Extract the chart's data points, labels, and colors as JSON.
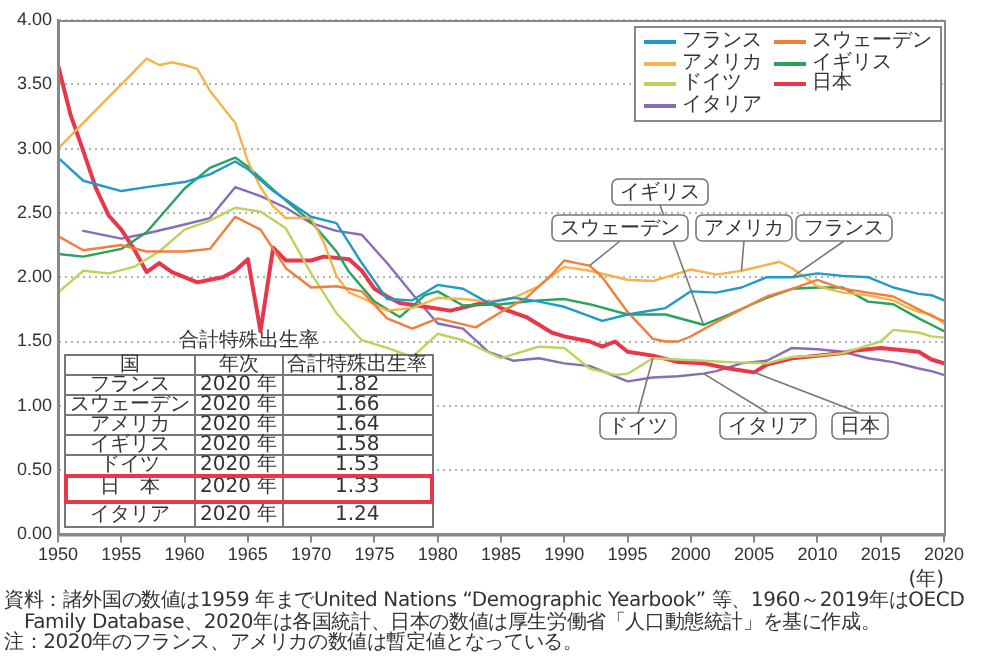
{
  "chart_data": {
    "type": "line",
    "xlabel": "(年)",
    "xlim": [
      1950,
      2020
    ],
    "xticks": [
      1950,
      1955,
      1960,
      1965,
      1970,
      1975,
      1980,
      1985,
      1990,
      1995,
      2000,
      2005,
      2010,
      2015,
      2020
    ],
    "ylim": [
      0,
      4
    ],
    "yticks": [
      {
        "value": 0,
        "label": "0.00"
      },
      {
        "value": 0.5,
        "label": "0.50"
      },
      {
        "value": 1,
        "label": "1.00"
      },
      {
        "value": 1.5,
        "label": "1.50"
      },
      {
        "value": 2,
        "label": "2.00"
      },
      {
        "value": 2.5,
        "label": "2.50"
      },
      {
        "value": 3,
        "label": "3.00"
      },
      {
        "value": 3.5,
        "label": "3.50"
      },
      {
        "value": 4,
        "label": "4.00"
      }
    ],
    "grid": "y",
    "legend": "top right",
    "marker": "none",
    "line_style": "solid",
    "series": [
      {
        "name": "フランス",
        "color": "#1f9ac9",
        "x": [
          1950,
          1952,
          1955,
          1957,
          1960,
          1962,
          1964,
          1965,
          1967,
          1970,
          1972,
          1974,
          1976,
          1978,
          1980,
          1982,
          1984,
          1986,
          1988,
          1990,
          1993,
          1995,
          1998,
          2000,
          2002,
          2004,
          2006,
          2008,
          2010,
          2012,
          2014,
          2016,
          2018,
          2019,
          2020
        ],
        "values": [
          2.93,
          2.75,
          2.67,
          2.7,
          2.74,
          2.8,
          2.9,
          2.84,
          2.67,
          2.47,
          2.42,
          2.11,
          1.83,
          1.82,
          1.94,
          1.91,
          1.8,
          1.84,
          1.81,
          1.77,
          1.66,
          1.71,
          1.76,
          1.89,
          1.88,
          1.92,
          2.0,
          2.0,
          2.03,
          2.01,
          2.0,
          1.92,
          1.87,
          1.86,
          1.82
        ]
      },
      {
        "name": "スウェーデン",
        "color": "#f07f3c",
        "x": [
          1950,
          1952,
          1955,
          1957,
          1960,
          1962,
          1964,
          1966,
          1968,
          1970,
          1972,
          1974,
          1976,
          1978,
          1980,
          1983,
          1985,
          1987,
          1989,
          1990,
          1991,
          1992,
          1993,
          1995,
          1997,
          1998,
          1999,
          2000,
          2002,
          2004,
          2006,
          2008,
          2010,
          2012,
          2014,
          2016,
          2018,
          2019,
          2020
        ],
        "values": [
          2.32,
          2.21,
          2.25,
          2.2,
          2.2,
          2.22,
          2.47,
          2.37,
          2.07,
          1.92,
          1.93,
          1.89,
          1.68,
          1.6,
          1.68,
          1.61,
          1.73,
          1.84,
          2.02,
          2.13,
          2.11,
          2.09,
          2.0,
          1.73,
          1.52,
          1.5,
          1.5,
          1.54,
          1.65,
          1.75,
          1.85,
          1.91,
          1.98,
          1.91,
          1.88,
          1.85,
          1.75,
          1.7,
          1.66
        ]
      },
      {
        "name": "アメリカ",
        "color": "#f7b24a",
        "x": [
          1950,
          1952,
          1954,
          1955,
          1957,
          1958,
          1959,
          1960,
          1961,
          1962,
          1964,
          1965,
          1966,
          1967,
          1968,
          1970,
          1971,
          1972,
          1973,
          1974,
          1976,
          1978,
          1980,
          1982,
          1984,
          1986,
          1988,
          1989,
          1990,
          1992,
          1995,
          1997,
          2000,
          2002,
          2004,
          2007,
          2008,
          2009,
          2010,
          2012,
          2014,
          2016,
          2017,
          2018,
          2019,
          2020
        ],
        "values": [
          3.0,
          3.2,
          3.4,
          3.5,
          3.7,
          3.65,
          3.67,
          3.65,
          3.62,
          3.45,
          3.2,
          2.9,
          2.7,
          2.55,
          2.46,
          2.46,
          2.27,
          2.01,
          1.88,
          1.84,
          1.74,
          1.76,
          1.84,
          1.83,
          1.81,
          1.84,
          1.93,
          2.01,
          2.08,
          2.05,
          1.98,
          1.97,
          2.06,
          2.02,
          2.05,
          2.12,
          2.07,
          2.0,
          1.93,
          1.88,
          1.86,
          1.82,
          1.77,
          1.73,
          1.71,
          1.64
        ]
      },
      {
        "name": "イギリス",
        "color": "#27a35a",
        "x": [
          1950,
          1952,
          1955,
          1957,
          1960,
          1962,
          1964,
          1965,
          1967,
          1970,
          1972,
          1973,
          1975,
          1977,
          1979,
          1980,
          1982,
          1985,
          1988,
          1990,
          1992,
          1995,
          1998,
          2001,
          2003,
          2006,
          2008,
          2010,
          2012,
          2014,
          2016,
          2018,
          2019,
          2020
        ],
        "values": [
          2.18,
          2.16,
          2.22,
          2.35,
          2.69,
          2.85,
          2.93,
          2.86,
          2.68,
          2.43,
          2.2,
          2.04,
          1.81,
          1.69,
          1.86,
          1.89,
          1.78,
          1.79,
          1.82,
          1.83,
          1.79,
          1.71,
          1.71,
          1.63,
          1.71,
          1.84,
          1.91,
          1.92,
          1.92,
          1.81,
          1.79,
          1.68,
          1.63,
          1.58
        ]
      },
      {
        "name": "ドイツ",
        "color": "#bcd35a",
        "x": [
          1950,
          1952,
          1954,
          1956,
          1958,
          1960,
          1962,
          1964,
          1966,
          1968,
          1970,
          1972,
          1974,
          1976,
          1978,
          1980,
          1982,
          1985,
          1987,
          1988,
          1990,
          1992,
          1994,
          1995,
          1997,
          1999,
          2001,
          2003,
          2006,
          2008,
          2010,
          2012,
          2014,
          2015,
          2016,
          2018,
          2019,
          2020
        ],
        "values": [
          1.88,
          2.05,
          2.03,
          2.08,
          2.2,
          2.37,
          2.44,
          2.54,
          2.51,
          2.38,
          2.03,
          1.72,
          1.51,
          1.45,
          1.38,
          1.56,
          1.51,
          1.37,
          1.43,
          1.46,
          1.45,
          1.29,
          1.24,
          1.25,
          1.37,
          1.36,
          1.35,
          1.34,
          1.33,
          1.38,
          1.39,
          1.41,
          1.47,
          1.5,
          1.59,
          1.57,
          1.54,
          1.53
        ]
      },
      {
        "name": "日本",
        "color": "#e8364a",
        "x": [
          1950,
          1951,
          1952,
          1953,
          1954,
          1955,
          1956,
          1957,
          1958,
          1959,
          1960,
          1961,
          1962,
          1963,
          1964,
          1965,
          1966,
          1967,
          1968,
          1970,
          1971,
          1973,
          1974,
          1975,
          1976,
          1977,
          1979,
          1981,
          1984,
          1985,
          1987,
          1989,
          1990,
          1992,
          1993,
          1994,
          1995,
          1997,
          1999,
          2001,
          2003,
          2005,
          2006,
          2008,
          2010,
          2012,
          2013,
          2015,
          2017,
          2018,
          2019,
          2020
        ],
        "values": [
          3.65,
          3.26,
          2.98,
          2.69,
          2.48,
          2.37,
          2.22,
          2.04,
          2.11,
          2.04,
          2.0,
          1.96,
          1.98,
          2.0,
          2.05,
          2.14,
          1.58,
          2.23,
          2.13,
          2.13,
          2.16,
          2.14,
          2.05,
          1.91,
          1.85,
          1.8,
          1.77,
          1.74,
          1.81,
          1.76,
          1.69,
          1.57,
          1.54,
          1.5,
          1.46,
          1.5,
          1.42,
          1.39,
          1.34,
          1.33,
          1.29,
          1.26,
          1.32,
          1.37,
          1.39,
          1.41,
          1.43,
          1.45,
          1.43,
          1.42,
          1.36,
          1.33
        ]
      },
      {
        "name": "イタリア",
        "color": "#8a6bb8",
        "x": [
          1952,
          1955,
          1957,
          1960,
          1962,
          1964,
          1966,
          1968,
          1970,
          1972,
          1974,
          1976,
          1978,
          1980,
          1982,
          1984,
          1986,
          1988,
          1990,
          1992,
          1995,
          1997,
          1999,
          2001,
          2002,
          2004,
          2006,
          2008,
          2010,
          2012,
          2014,
          2016,
          2018,
          2019,
          2020
        ],
        "values": [
          2.36,
          2.3,
          2.34,
          2.41,
          2.46,
          2.7,
          2.63,
          2.54,
          2.42,
          2.36,
          2.33,
          2.11,
          1.87,
          1.64,
          1.6,
          1.42,
          1.35,
          1.37,
          1.33,
          1.31,
          1.19,
          1.22,
          1.23,
          1.25,
          1.27,
          1.33,
          1.35,
          1.45,
          1.44,
          1.42,
          1.37,
          1.34,
          1.29,
          1.27,
          1.24
        ]
      }
    ],
    "annotations": [
      "合計特殊出生率",
      "国",
      "年次",
      "合計特殊出生率",
      "フランス",
      "2020 年",
      "1.82",
      "スウェーデン",
      "2020 年",
      "1.66",
      "アメリカ",
      "2020 年",
      "1.64",
      "イギリス",
      "2020 年",
      "1.58",
      "ドイツ",
      "2020 年",
      "1.53",
      "日　本",
      "2020 年",
      "1.33",
      "イタリア",
      "2020 年",
      "1.24",
      "資料：諸外国の数値は1959 年までUnited Nations “Demographic Yearbook” 等、1960～2019年はOECD Family Database、2020年は各国統計、日本の数値は厚生労働省「人口動態統計」を基に作成。",
      "注：2020年のフランス、アメリカの数値は暫定値となっている。",
      {
        "text": "スウェーデン",
        "x": 1992,
        "y": 2.09
      },
      {
        "text": "イギリス",
        "x": 2001,
        "y": 1.63
      },
      {
        "text": "アメリカ",
        "x": 2004,
        "y": 2.05
      },
      {
        "text": "フランス",
        "x": 2008,
        "y": 2.0
      },
      {
        "text": "ドイツ",
        "x": 1997,
        "y": 1.37
      },
      {
        "text": "イタリア",
        "x": 2001,
        "y": 1.25
      },
      {
        "text": "日本",
        "x": 2005,
        "y": 1.26
      }
    ]
  }
}
